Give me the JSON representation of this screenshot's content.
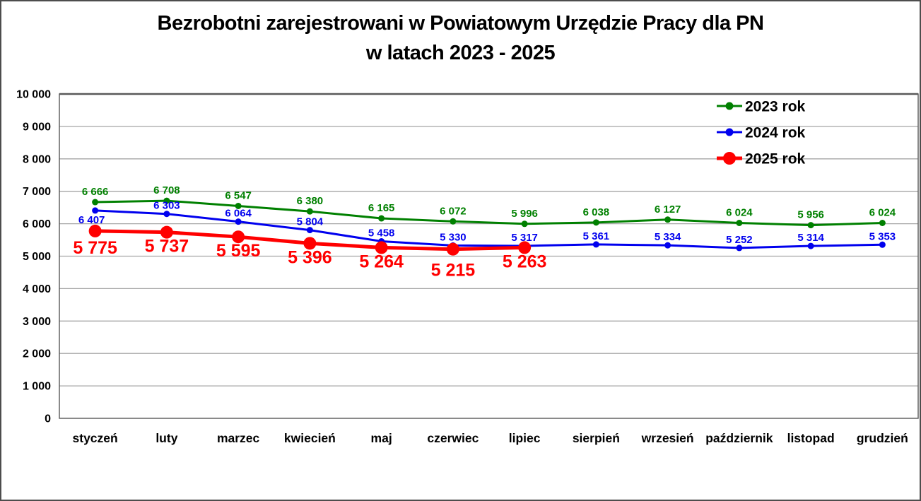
{
  "title": {
    "line1": "Bezrobotni zarejestrowani w Powiatowym Urzędzie Pracy dla PN",
    "line2": "w latach 2023 - 2025"
  },
  "chart_data": {
    "type": "line",
    "title": "Bezrobotni zarejestrowani w Powiatowym Urzędzie Pracy dla PN w latach 2023 - 2025",
    "categories": [
      "styczeń",
      "luty",
      "marzec",
      "kwiecień",
      "maj",
      "czerwiec",
      "lipiec",
      "sierpień",
      "wrzesień",
      "październik",
      "listopad",
      "grudzień"
    ],
    "series": [
      {
        "name": "2023 rok",
        "color": "#008000",
        "values": [
          6666,
          6708,
          6547,
          6380,
          6165,
          6072,
          5996,
          6038,
          6127,
          6024,
          5956,
          6024
        ]
      },
      {
        "name": "2024 rok",
        "color": "#0000ee",
        "values": [
          6407,
          6303,
          6064,
          5804,
          5458,
          5330,
          5317,
          5361,
          5334,
          5252,
          5314,
          5353
        ]
      },
      {
        "name": "2025 rok",
        "color": "#ff0000",
        "values": [
          5775,
          5737,
          5595,
          5396,
          5264,
          5215,
          5263
        ]
      }
    ],
    "xlabel": "",
    "ylabel": "",
    "ylim": [
      0,
      10000
    ],
    "ytick_step": 1000,
    "ytick_labels": [
      "0",
      "1 000",
      "2 000",
      "3 000",
      "4 000",
      "5 000",
      "6 000",
      "7 000",
      "8 000",
      "9 000",
      "10 000"
    ],
    "grid": true,
    "gridline_color": "#a6a6a6",
    "axis_color": "#595959",
    "data_labels_visible": true,
    "legend_position": "top-right",
    "legend_entries": [
      "2023 rok",
      "2024 rok",
      "2025 rok"
    ],
    "number_format": "space-thousands"
  }
}
